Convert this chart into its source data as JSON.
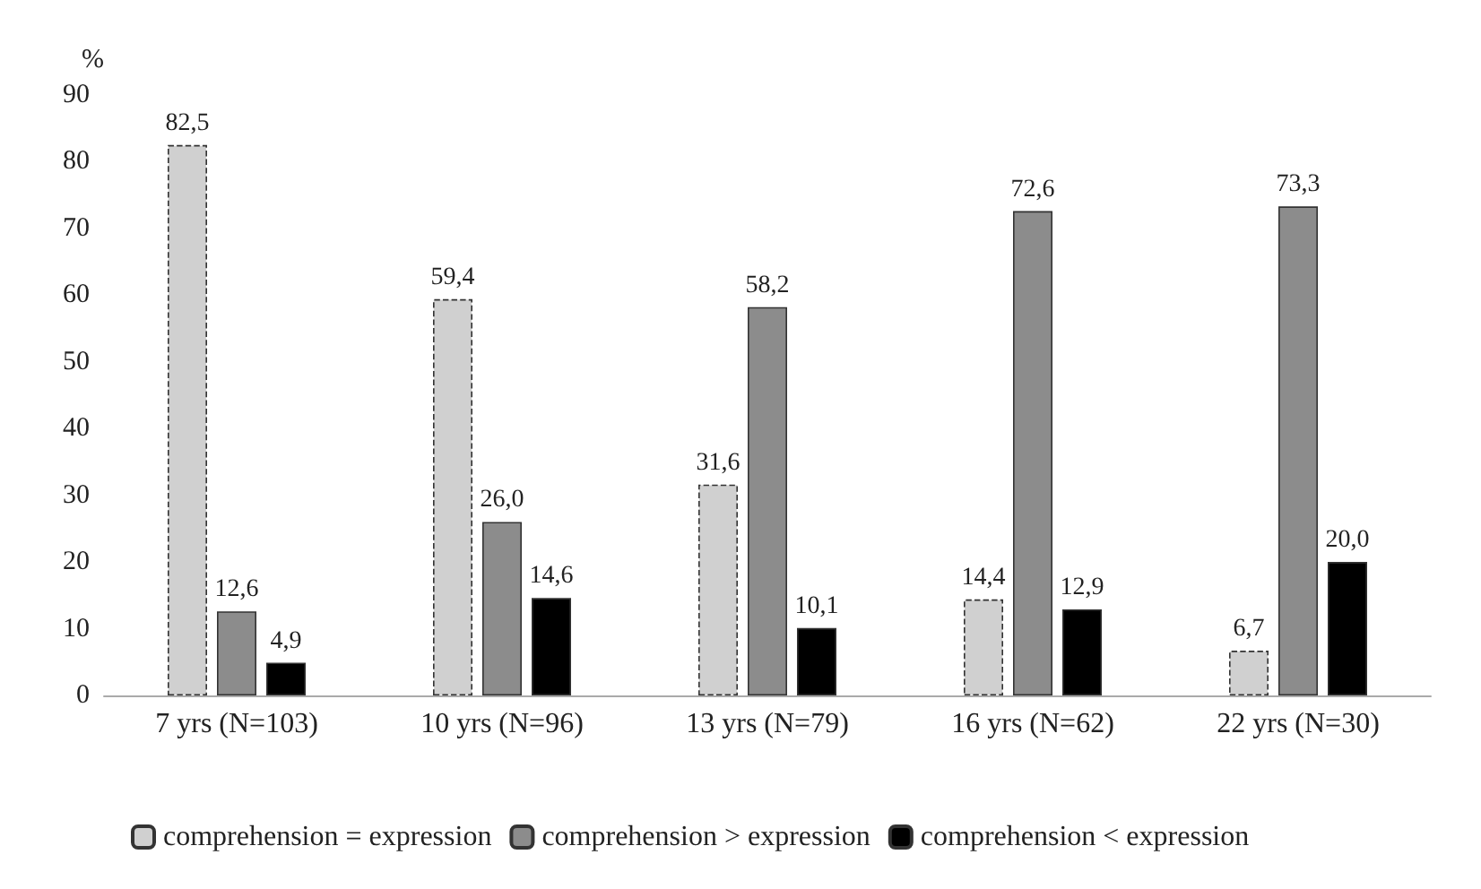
{
  "chart_data": {
    "type": "bar",
    "ylabel": "%",
    "categories": [
      "7 yrs (N=103)",
      "10 yrs (N=96)",
      "13 yrs (N=79)",
      "16 yrs (N=62)",
      "22 yrs (N=30)"
    ],
    "series": [
      {
        "name": "comprehension = expression",
        "color": "#d0d0d0",
        "values": [
          82.5,
          59.4,
          31.6,
          14.4,
          6.7
        ],
        "value_labels": [
          "82,5",
          "59,4",
          "31,6",
          "14,4",
          "6,7"
        ]
      },
      {
        "name": "comprehension > expression",
        "color": "#8c8c8c",
        "values": [
          12.6,
          26.0,
          58.2,
          72.6,
          73.3
        ],
        "value_labels": [
          "12,6",
          "26,0",
          "58,2",
          "72,6",
          "73,3"
        ]
      },
      {
        "name": "comprehension < expression",
        "color": "#000000",
        "values": [
          4.9,
          14.6,
          10.1,
          12.9,
          20.0
        ],
        "value_labels": [
          "4,9",
          "14,6",
          "10,1",
          "12,9",
          "20,0"
        ]
      }
    ],
    "ylim": [
      0,
      90
    ],
    "yticks": [
      0,
      10,
      20,
      30,
      40,
      50,
      60,
      70,
      80,
      90
    ],
    "grid": false,
    "legend": "bottom"
  }
}
